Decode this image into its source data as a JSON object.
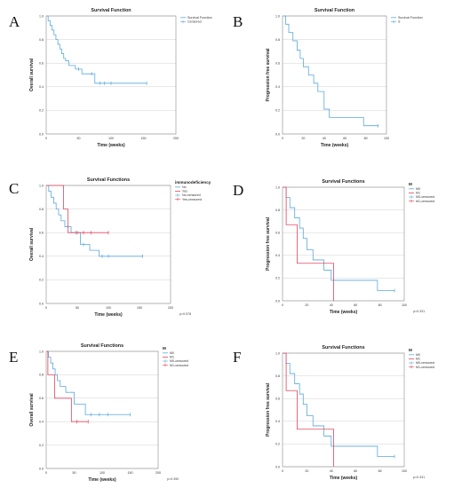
{
  "colors": {
    "blue": "#5aa9de",
    "red": "#e0455f"
  },
  "chart_data": [
    {
      "letter": "A",
      "type": "line",
      "title": "Survival Function",
      "xlabel": "Time (weeks)",
      "ylabel": "Overall survival",
      "xlim": [
        0,
        200
      ],
      "ylim": [
        0,
        1.0
      ],
      "x_ticks": [
        0,
        50,
        100,
        150,
        200
      ],
      "legend_title": "",
      "legend_position": "top-right",
      "grid": true,
      "pvalue": "",
      "series": [
        {
          "name": "Survival Function",
          "color": "#5aa9de",
          "x": [
            0,
            3,
            6,
            9,
            12,
            15,
            18,
            21,
            24,
            27,
            30,
            35,
            45,
            55,
            75,
            155
          ],
          "y": [
            1.0,
            0.96,
            0.92,
            0.88,
            0.84,
            0.8,
            0.76,
            0.72,
            0.68,
            0.64,
            0.62,
            0.58,
            0.55,
            0.51,
            0.43,
            0.43
          ]
        }
      ],
      "censored": [
        {
          "name": "Censored",
          "color": "#5aa9de",
          "x": [
            50,
            70,
            83,
            90,
            100,
            155
          ],
          "y": [
            0.55,
            0.51,
            0.43,
            0.43,
            0.43,
            0.43
          ]
        }
      ]
    },
    {
      "letter": "B",
      "type": "line",
      "title": "Survival Function",
      "xlabel": "Time (weeks)",
      "ylabel": "Progression free survival",
      "xlim": [
        0,
        100
      ],
      "ylim": [
        0,
        1.0
      ],
      "x_ticks": [
        0,
        20,
        40,
        60,
        80,
        100
      ],
      "legend_title": "",
      "legend_position": "top-right",
      "grid": true,
      "pvalue": "",
      "series": [
        {
          "name": "Survival Function",
          "color": "#5aa9de",
          "x": [
            0,
            3,
            6,
            10,
            14,
            17,
            20,
            25,
            30,
            34,
            40,
            45,
            60,
            78,
            92
          ],
          "y": [
            1.0,
            0.93,
            0.86,
            0.79,
            0.71,
            0.64,
            0.57,
            0.5,
            0.43,
            0.36,
            0.21,
            0.14,
            0.14,
            0.07,
            0.07
          ]
        }
      ],
      "censored": [
        {
          "name": "S",
          "color": "#5aa9de",
          "x": [
            92
          ],
          "y": [
            0.07
          ]
        }
      ]
    },
    {
      "letter": "C",
      "type": "line",
      "title": "Survival Functions",
      "xlabel": "Time (weeks)",
      "ylabel": "Overall survival",
      "xlim": [
        0,
        200
      ],
      "ylim": [
        0,
        1.0
      ],
      "x_ticks": [
        0,
        50,
        100,
        150,
        200
      ],
      "legend_title": "immunodeficiency",
      "legend_position": "top-right",
      "grid": true,
      "pvalue": "p=0.578",
      "series": [
        {
          "name": "No",
          "color": "#5aa9de",
          "x": [
            0,
            4,
            8,
            12,
            16,
            20,
            24,
            30,
            40,
            55,
            70,
            85,
            155
          ],
          "y": [
            1.0,
            0.95,
            0.9,
            0.85,
            0.8,
            0.75,
            0.7,
            0.65,
            0.6,
            0.5,
            0.45,
            0.4,
            0.4
          ]
        },
        {
          "name": "Yes",
          "color": "#e0455f",
          "x": [
            0,
            20,
            28,
            35,
            100
          ],
          "y": [
            1.0,
            1.0,
            0.8,
            0.6,
            0.6
          ]
        }
      ],
      "censored": [
        {
          "name": "No-censored",
          "color": "#5aa9de",
          "x": [
            48,
            60,
            90,
            100,
            155
          ],
          "y": [
            0.6,
            0.5,
            0.4,
            0.4,
            0.4
          ]
        },
        {
          "name": "Yes-censored",
          "color": "#e0455f",
          "x": [
            50,
            60,
            72,
            100
          ],
          "y": [
            0.6,
            0.6,
            0.6,
            0.6
          ]
        }
      ]
    },
    {
      "letter": "D",
      "type": "line",
      "title": "Survival Functions",
      "xlabel": "Time (weeks)",
      "ylabel": "Progression free survival",
      "xlim": [
        0,
        100
      ],
      "ylim": [
        0,
        1.0
      ],
      "x_ticks": [
        0,
        20,
        40,
        60,
        80,
        100
      ],
      "legend_title": "M",
      "legend_position": "top-right",
      "grid": true,
      "pvalue": "p=0.331",
      "series": [
        {
          "name": "M0",
          "color": "#5aa9de",
          "x": [
            0,
            3,
            6,
            10,
            14,
            17,
            20,
            25,
            30,
            34,
            40,
            45,
            78,
            92
          ],
          "y": [
            1.0,
            0.91,
            0.82,
            0.73,
            0.64,
            0.55,
            0.45,
            0.36,
            0.36,
            0.27,
            0.18,
            0.18,
            0.09,
            0.09
          ]
        },
        {
          "name": "M1",
          "color": "#e0455f",
          "x": [
            0,
            3,
            12,
            42,
            42
          ],
          "y": [
            1.0,
            0.67,
            0.33,
            0.33,
            0.0
          ]
        }
      ],
      "censored": [
        {
          "name": "M0-censored",
          "color": "#5aa9de",
          "x": [
            92
          ],
          "y": [
            0.09
          ]
        },
        {
          "name": "M1-censored",
          "color": "#e0455f",
          "x": [],
          "y": []
        }
      ]
    },
    {
      "letter": "E",
      "type": "line",
      "title": "Survival Functions",
      "xlabel": "Time (weeks)",
      "ylabel": "Overall survival",
      "xlim": [
        0,
        200
      ],
      "ylim": [
        0,
        1.0
      ],
      "x_ticks": [
        0,
        50,
        100,
        150,
        200
      ],
      "legend_title": "M",
      "legend_position": "top-right",
      "grid": true,
      "pvalue": "p=0.390",
      "series": [
        {
          "name": "M0",
          "color": "#5aa9de",
          "x": [
            0,
            4,
            8,
            12,
            16,
            20,
            25,
            35,
            50,
            70,
            150
          ],
          "y": [
            1.0,
            0.95,
            0.9,
            0.85,
            0.8,
            0.75,
            0.7,
            0.65,
            0.55,
            0.46,
            0.46
          ]
        },
        {
          "name": "M1",
          "color": "#e0455f",
          "x": [
            0,
            3,
            15,
            45,
            75
          ],
          "y": [
            1.0,
            0.8,
            0.6,
            0.4,
            0.4
          ]
        }
      ],
      "censored": [
        {
          "name": "M0-censored",
          "color": "#5aa9de",
          "x": [
            80,
            95,
            110,
            150
          ],
          "y": [
            0.46,
            0.46,
            0.46,
            0.46
          ]
        },
        {
          "name": "M1-censored",
          "color": "#e0455f",
          "x": [
            55,
            75
          ],
          "y": [
            0.4,
            0.4
          ]
        }
      ]
    },
    {
      "letter": "F",
      "type": "line",
      "title": "Survival Functions",
      "xlabel": "Time (weeks)",
      "ylabel": "Progression free survival",
      "xlim": [
        0,
        100
      ],
      "ylim": [
        0,
        1.0
      ],
      "x_ticks": [
        0,
        20,
        40,
        60,
        80,
        100
      ],
      "legend_title": "M",
      "legend_position": "top-right",
      "grid": true,
      "pvalue": "p=0.331",
      "series": [
        {
          "name": "M0",
          "color": "#5aa9de",
          "x": [
            0,
            3,
            6,
            10,
            14,
            17,
            20,
            25,
            30,
            34,
            40,
            45,
            78,
            92
          ],
          "y": [
            1.0,
            0.91,
            0.82,
            0.73,
            0.64,
            0.55,
            0.45,
            0.36,
            0.36,
            0.27,
            0.18,
            0.18,
            0.09,
            0.09
          ]
        },
        {
          "name": "M1",
          "color": "#e0455f",
          "x": [
            0,
            3,
            12,
            42,
            42
          ],
          "y": [
            1.0,
            0.67,
            0.33,
            0.33,
            0.0
          ]
        }
      ],
      "censored": [
        {
          "name": "M0-censored",
          "color": "#5aa9de",
          "x": [
            92
          ],
          "y": [
            0.09
          ]
        },
        {
          "name": "M1-censored",
          "color": "#e0455f",
          "x": [],
          "y": []
        }
      ]
    }
  ]
}
